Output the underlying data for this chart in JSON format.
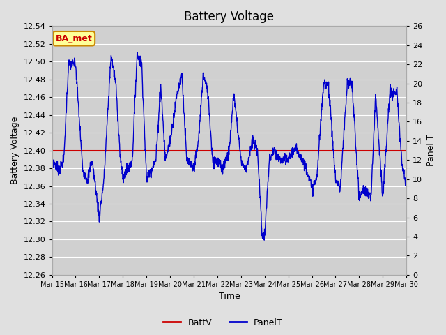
{
  "title": "Battery Voltage",
  "xlabel": "Time",
  "ylabel_left": "Battery Voltage",
  "ylabel_right": "Panel T",
  "ylim_left": [
    12.26,
    12.54
  ],
  "ylim_right": [
    0,
    26
  ],
  "yticks_left": [
    12.26,
    12.28,
    12.3,
    12.32,
    12.34,
    12.36,
    12.38,
    12.4,
    12.42,
    12.44,
    12.46,
    12.48,
    12.5,
    12.52,
    12.54
  ],
  "yticks_right": [
    0,
    2,
    4,
    6,
    8,
    10,
    12,
    14,
    16,
    18,
    20,
    22,
    24,
    26
  ],
  "xtick_labels": [
    "Mar 15",
    "Mar 16",
    "Mar 17",
    "Mar 18",
    "Mar 19",
    "Mar 20",
    "Mar 21",
    "Mar 22",
    "Mar 23",
    "Mar 24",
    "Mar 25",
    "Mar 26",
    "Mar 27",
    "Mar 28",
    "Mar 29",
    "Mar 30"
  ],
  "batt_v": 12.4,
  "batt_color": "#cc0000",
  "panel_color": "#0000cc",
  "background_color": "#e0e0e0",
  "plot_bg_color": "#d0d0d0",
  "grid_color": "#ffffff",
  "annotation_text": "BA_met",
  "annotation_bg": "#ffff99",
  "annotation_border": "#cc8800",
  "annotation_text_color": "#cc0000",
  "legend_batt_label": "BattV",
  "legend_panel_label": "PanelT",
  "title_fontsize": 12,
  "axis_fontsize": 9,
  "tick_fontsize": 8
}
